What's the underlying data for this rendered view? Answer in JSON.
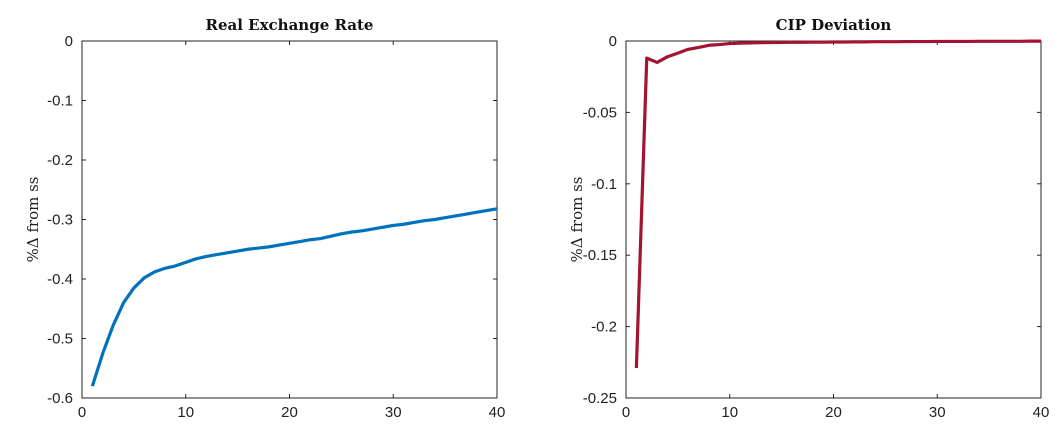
{
  "chart_data": [
    {
      "type": "line",
      "title": "Real Exchange Rate",
      "xlabel": "",
      "ylabel": "%Δ from ss",
      "xlim": [
        0,
        40
      ],
      "ylim": [
        -0.6,
        0
      ],
      "xticks": [
        0,
        10,
        20,
        30,
        40
      ],
      "yticks": [
        0,
        -0.1,
        -0.2,
        -0.3,
        -0.4,
        -0.5,
        -0.6
      ],
      "ytick_labels": [
        "0",
        "-0.1",
        "-0.2",
        "-0.3",
        "-0.4",
        "-0.5",
        "-0.6"
      ],
      "grid": false,
      "color": "#0072BD",
      "series": [
        {
          "x": [
            1,
            2,
            3,
            4,
            5,
            6,
            7,
            8,
            9,
            10,
            11,
            12,
            13,
            14,
            15,
            16,
            17,
            18,
            19,
            20,
            21,
            22,
            23,
            24,
            25,
            26,
            27,
            28,
            29,
            30,
            31,
            32,
            33,
            34,
            35,
            36,
            37,
            38,
            39,
            40
          ],
          "values": [
            -0.58,
            -0.525,
            -0.478,
            -0.44,
            -0.415,
            -0.398,
            -0.388,
            -0.382,
            -0.378,
            -0.372,
            -0.366,
            -0.362,
            -0.359,
            -0.356,
            -0.353,
            -0.35,
            -0.348,
            -0.346,
            -0.343,
            -0.34,
            -0.337,
            -0.334,
            -0.332,
            -0.328,
            -0.324,
            -0.321,
            -0.319,
            -0.316,
            -0.313,
            -0.31,
            -0.308,
            -0.305,
            -0.302,
            -0.3,
            -0.297,
            -0.294,
            -0.291,
            -0.288,
            -0.285,
            -0.282
          ]
        }
      ]
    },
    {
      "type": "line",
      "title": "CIP Deviation",
      "xlabel": "",
      "ylabel": "%Δ from ss",
      "xlim": [
        0,
        40
      ],
      "ylim": [
        -0.25,
        0
      ],
      "xticks": [
        0,
        10,
        20,
        30,
        40
      ],
      "yticks": [
        0,
        -0.05,
        -0.1,
        -0.15,
        -0.2,
        -0.25
      ],
      "ytick_labels": [
        "0",
        "-0.05",
        "-0.1",
        "-0.15",
        "-0.2",
        "-0.25"
      ],
      "grid": false,
      "color": "#A2142F",
      "series": [
        {
          "x": [
            1,
            2,
            3,
            4,
            5,
            6,
            7,
            8,
            9,
            10,
            11,
            12,
            13,
            14,
            15,
            16,
            17,
            18,
            19,
            20,
            21,
            22,
            23,
            24,
            25,
            26,
            27,
            28,
            29,
            30,
            31,
            32,
            33,
            34,
            35,
            36,
            37,
            38,
            39,
            40
          ],
          "values": [
            -0.229,
            -0.012,
            -0.015,
            -0.011,
            -0.0085,
            -0.0058,
            -0.0045,
            -0.003,
            -0.0025,
            -0.0018,
            -0.0015,
            -0.0013,
            -0.0012,
            -0.0011,
            -0.001,
            -0.0009,
            -0.0009,
            -0.0008,
            -0.0008,
            -0.0007,
            -0.0007,
            -0.0006,
            -0.0006,
            -0.0005,
            -0.0005,
            -0.0005,
            -0.0004,
            -0.0004,
            -0.0004,
            -0.0003,
            -0.0003,
            -0.0003,
            -0.0003,
            -0.0002,
            -0.0002,
            -0.0002,
            -0.0002,
            -0.0002,
            -0.0001,
            -0.0001
          ]
        }
      ]
    }
  ]
}
